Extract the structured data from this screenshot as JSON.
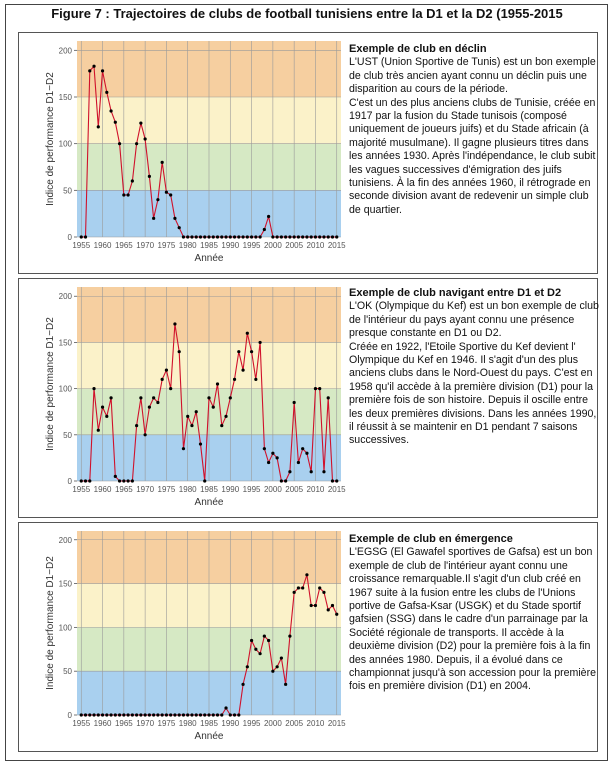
{
  "figure_title": "Figure 7 : Trajectoires de clubs de football tunisiens entre la D1 et la D2 (1955-2015",
  "colors": {
    "band_orange": "#f6cfa0",
    "band_yellow": "#fbf2c9",
    "band_green": "#d6e9c4",
    "band_blue": "#a9d0ef",
    "line": "#d0112b",
    "point": "#000000"
  },
  "chart_data": [
    {
      "type": "line",
      "xlabel": "Année",
      "ylabel": "Indice de performance D1−D2",
      "xlim": [
        1954,
        2016
      ],
      "ylim": [
        0,
        210
      ],
      "x_ticks": [
        1955,
        1960,
        1965,
        1970,
        1975,
        1980,
        1985,
        1990,
        1995,
        2000,
        2005,
        2010,
        2015
      ],
      "y_ticks": [
        0,
        50,
        100,
        150,
        200
      ],
      "background_bands": [
        [
          0,
          50
        ],
        [
          50,
          100
        ],
        [
          100,
          150
        ],
        [
          150,
          210
        ]
      ],
      "x": [
        1955,
        1956,
        1957,
        1958,
        1959,
        1960,
        1961,
        1962,
        1963,
        1964,
        1965,
        1966,
        1967,
        1968,
        1969,
        1970,
        1971,
        1972,
        1973,
        1974,
        1975,
        1976,
        1977,
        1978,
        1979,
        1980,
        1981,
        1982,
        1983,
        1984,
        1985,
        1986,
        1987,
        1988,
        1989,
        1990,
        1991,
        1992,
        1993,
        1994,
        1995,
        1996,
        1997,
        1998,
        1999,
        2000,
        2001,
        2002,
        2003,
        2004,
        2005,
        2006,
        2007,
        2008,
        2009,
        2010,
        2011,
        2012,
        2013,
        2014,
        2015
      ],
      "values": [
        0,
        0,
        178,
        183,
        118,
        178,
        155,
        135,
        123,
        100,
        45,
        45,
        60,
        100,
        122,
        105,
        65,
        20,
        40,
        80,
        48,
        45,
        20,
        10,
        0,
        0,
        0,
        0,
        0,
        0,
        0,
        0,
        0,
        0,
        0,
        0,
        0,
        0,
        0,
        0,
        0,
        0,
        0,
        8,
        22,
        0,
        0,
        0,
        0,
        0,
        0,
        0,
        0,
        0,
        0,
        0,
        0,
        0,
        0,
        0,
        0
      ]
    },
    {
      "type": "line",
      "xlabel": "Année",
      "ylabel": "Indice de performance D1−D2",
      "xlim": [
        1954,
        2016
      ],
      "ylim": [
        0,
        210
      ],
      "x_ticks": [
        1955,
        1960,
        1965,
        1970,
        1975,
        1980,
        1985,
        1990,
        1995,
        2000,
        2005,
        2010,
        2015
      ],
      "y_ticks": [
        0,
        50,
        100,
        150,
        200
      ],
      "background_bands": [
        [
          0,
          50
        ],
        [
          50,
          100
        ],
        [
          100,
          150
        ],
        [
          150,
          210
        ]
      ],
      "x": [
        1955,
        1956,
        1957,
        1958,
        1959,
        1960,
        1961,
        1962,
        1963,
        1964,
        1965,
        1966,
        1967,
        1968,
        1969,
        1970,
        1971,
        1972,
        1973,
        1974,
        1975,
        1976,
        1977,
        1978,
        1979,
        1980,
        1981,
        1982,
        1983,
        1984,
        1985,
        1986,
        1987,
        1988,
        1989,
        1990,
        1991,
        1992,
        1993,
        1994,
        1995,
        1996,
        1997,
        1998,
        1999,
        2000,
        2001,
        2002,
        2003,
        2004,
        2005,
        2006,
        2007,
        2008,
        2009,
        2010,
        2011,
        2012,
        2013,
        2014,
        2015
      ],
      "values": [
        0,
        0,
        0,
        100,
        55,
        80,
        70,
        90,
        5,
        0,
        0,
        0,
        0,
        60,
        90,
        50,
        80,
        90,
        85,
        110,
        120,
        100,
        170,
        140,
        35,
        70,
        60,
        75,
        40,
        0,
        90,
        80,
        105,
        60,
        70,
        90,
        110,
        140,
        120,
        160,
        140,
        110,
        150,
        35,
        20,
        30,
        25,
        0,
        0,
        10,
        85,
        20,
        35,
        30,
        10,
        100,
        100,
        10,
        90,
        0,
        0
      ]
    },
    {
      "type": "line",
      "xlabel": "Année",
      "ylabel": "Indice de performance D1−D2",
      "xlim": [
        1954,
        2016
      ],
      "ylim": [
        0,
        210
      ],
      "x_ticks": [
        1955,
        1960,
        1965,
        1970,
        1975,
        1980,
        1985,
        1990,
        1995,
        2000,
        2005,
        2010,
        2015
      ],
      "y_ticks": [
        0,
        50,
        100,
        150,
        200
      ],
      "background_bands": [
        [
          0,
          50
        ],
        [
          50,
          100
        ],
        [
          100,
          150
        ],
        [
          150,
          210
        ]
      ],
      "x": [
        1955,
        1956,
        1957,
        1958,
        1959,
        1960,
        1961,
        1962,
        1963,
        1964,
        1965,
        1966,
        1967,
        1968,
        1969,
        1970,
        1971,
        1972,
        1973,
        1974,
        1975,
        1976,
        1977,
        1978,
        1979,
        1980,
        1981,
        1982,
        1983,
        1984,
        1985,
        1986,
        1987,
        1988,
        1989,
        1990,
        1991,
        1992,
        1993,
        1994,
        1995,
        1996,
        1997,
        1998,
        1999,
        2000,
        2001,
        2002,
        2003,
        2004,
        2005,
        2006,
        2007,
        2008,
        2009,
        2010,
        2011,
        2012,
        2013,
        2014,
        2015
      ],
      "values": [
        0,
        0,
        0,
        0,
        0,
        0,
        0,
        0,
        0,
        0,
        0,
        0,
        0,
        0,
        0,
        0,
        0,
        0,
        0,
        0,
        0,
        0,
        0,
        0,
        0,
        0,
        0,
        0,
        0,
        0,
        0,
        0,
        0,
        0,
        8,
        0,
        0,
        0,
        35,
        55,
        85,
        75,
        70,
        90,
        85,
        50,
        55,
        65,
        35,
        90,
        140,
        145,
        145,
        160,
        125,
        125,
        145,
        140,
        120,
        125,
        115
      ]
    }
  ],
  "panels": [
    {
      "heading": "Exemple de club en déclin",
      "paragraphs": [
        "L'UST (Union Sportive de Tunis) est un bon exemple de club très ancien ayant connu un déclin puis une disparition au cours de la période.",
        "C'est un des plus anciens clubs de Tunisie, créée en 1917 par la fusion du Stade tunisois (composé uniquement de joueurs juifs) et du Stade africain (à majorité musulmane). Il gagne plusieurs titres dans les années 1930. Après l'indépendance, le club subit les vagues successives d'émigration des juifs tunisiens. À la fin des années 1960, il rétrograde en seconde division avant de redevenir un simple club de quartier."
      ]
    },
    {
      "heading": "Exemple de club navigant entre D1 et D2",
      "paragraphs": [
        "L'OK (Olympique du Kef) est un bon exemple de club de l'intérieur du pays ayant connu une présence presque constante en D1 ou D2.",
        "Créée en 1922, l'Etoile Sportive du Kef devient l' Olympique du Kef en 1946. Il s'agit d'un des plus anciens clubs dans le Nord-Ouest du pays. C'est en 1958 qu'il accède à la première division (D1) pour la première fois de son histoire. Depuis il oscille entre les deux premières divisions. Dans les années 1990, il réussit à se maintenir en D1 pendant 7 saisons successives."
      ]
    },
    {
      "heading": "Exemple de club en émergence",
      "paragraphs": [
        "L'EGSG (El Gawafel sportives de Gafsa) est un bon exemple de club de l'intérieur ayant connu une croissance remarquable.Il s'agit d'un club créé en 1967 suite à la fusion entre les clubs de l'Unions portive de Gafsa-Ksar (USGK) et du Stade sportif gafsien (SSG) dans le cadre d'un parrainage par la Société régionale de transports. Il accède à la deuxième division (D2) pour la première fois à la fin des années 1980. Depuis, il a évolué dans ce championnat jusqu'à son accession pour la première fois en première division (D1) en 2004."
      ]
    }
  ]
}
